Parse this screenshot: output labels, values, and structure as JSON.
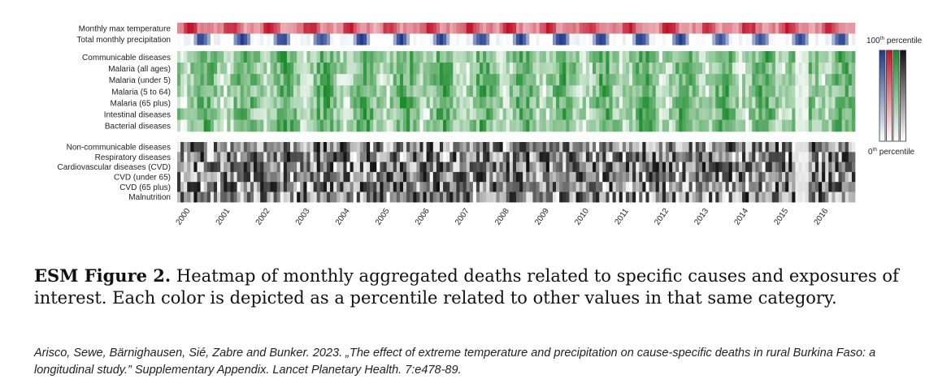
{
  "chart_data": {
    "type": "heatmap",
    "x_range": [
      "2000-01",
      "2016-12"
    ],
    "x_tick_labels": [
      "2000",
      "2001",
      "2002",
      "2003",
      "2004",
      "2005",
      "2006",
      "2007",
      "2008",
      "2009",
      "2010",
      "2011",
      "2012",
      "2013",
      "2014",
      "2015",
      "2016"
    ],
    "groups": [
      {
        "name": "exposures",
        "rows": [
          {
            "label": "Monthly max temperature",
            "color": "#c0142a"
          },
          {
            "label": "Total monthly precipitation",
            "color": "#1f3a8a"
          }
        ]
      },
      {
        "name": "communicable",
        "rows": [
          {
            "label": "Communicable diseases",
            "color": "#1a8a2a"
          },
          {
            "label": "Malaria (all ages)",
            "color": "#1a8a2a"
          },
          {
            "label": "Malaria (under 5)",
            "color": "#1a8a2a"
          },
          {
            "label": "Malaria (5 to 64)",
            "color": "#1a8a2a"
          },
          {
            "label": "Malaria (65 plus)",
            "color": "#1a8a2a"
          },
          {
            "label": "Intestinal diseases",
            "color": "#1a8a2a"
          },
          {
            "label": "Bacterial diseases",
            "color": "#1a8a2a"
          }
        ]
      },
      {
        "name": "non-communicable",
        "rows": [
          {
            "label": "Non-communicable diseases",
            "color": "#111111"
          },
          {
            "label": "Respiratory diseases",
            "color": "#111111"
          },
          {
            "label": "Cardiovascular diseases (CVD)",
            "color": "#111111"
          },
          {
            "label": "CVD (under 65)",
            "color": "#111111"
          },
          {
            "label": "CVD (65 plus)",
            "color": "#111111"
          },
          {
            "label": "Malnutrition",
            "color": "#111111"
          }
        ]
      }
    ],
    "value_scale": {
      "min_label": "0th percentile",
      "max_label": "100th percentile",
      "min": 0,
      "max": 100
    },
    "legend_colors": [
      "#1f3a8a",
      "#c0142a",
      "#1a8a2a",
      "#111111"
    ]
  },
  "legend": {
    "top_num": "100",
    "top_sup": "th",
    "top_word": " percentile",
    "bottom_num": "0",
    "bottom_sup": "th",
    "bottom_word": " percentile"
  },
  "caption": {
    "label": "ESM Figure 2.",
    "text": " Heatmap of monthly aggregated deaths related to specific causes and exposures of interest. Each color is depicted as a percentile related to other values in that same category."
  },
  "citation": "Arisco, Sewe, Bärnighausen, Sié, Zabre and Bunker. 2023. „The effect of extreme temperature and precipitation on cause-specific deaths in rural Burkina Faso: a longitudinal study.” Supplementary Appendix. Lancet Planetary Health. 7:e478-89."
}
